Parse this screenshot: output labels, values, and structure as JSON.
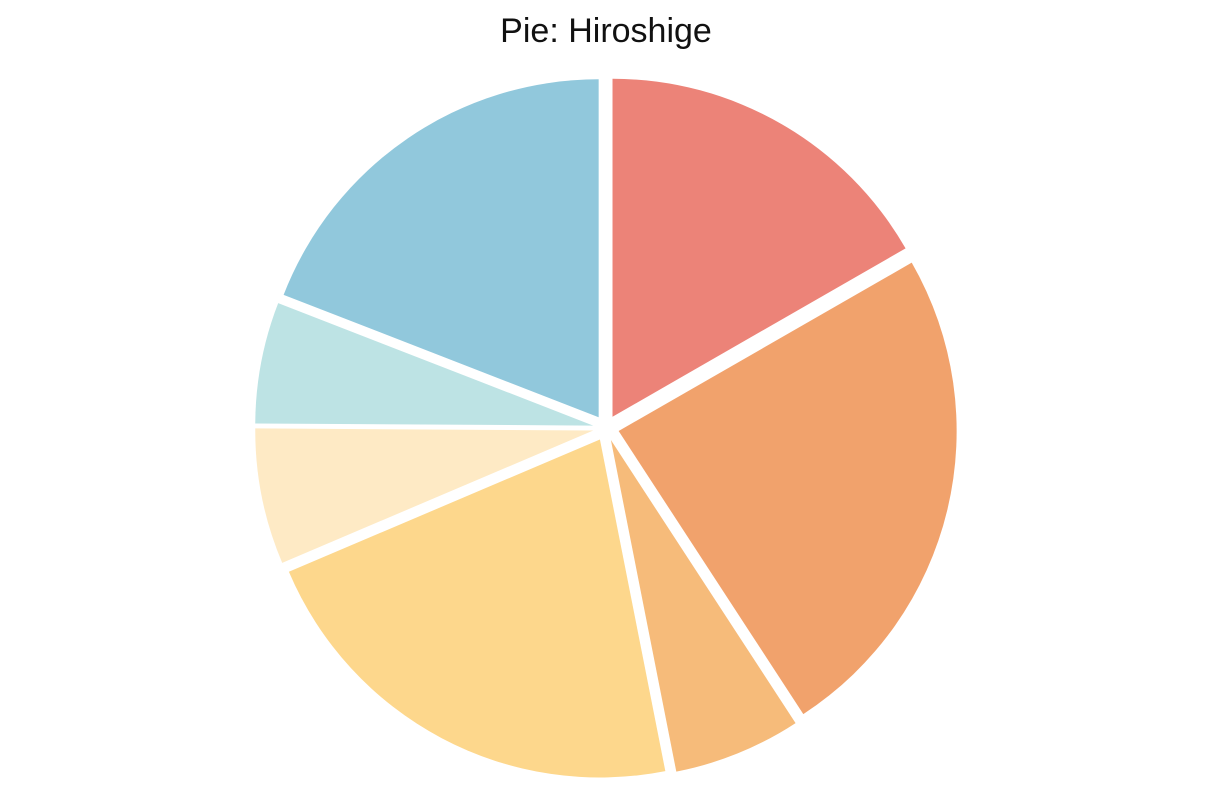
{
  "chart_data": {
    "type": "pie",
    "title": "Pie: Hiroshige",
    "values": [
      16.7,
      24.1,
      6.1,
      21.7,
      6.5,
      5.8,
      19.1
    ],
    "colors": [
      "#ec8378",
      "#f1a26c",
      "#f6bb7a",
      "#fdd78c",
      "#feeac5",
      "#bde3e4",
      "#91c8dc"
    ]
  }
}
